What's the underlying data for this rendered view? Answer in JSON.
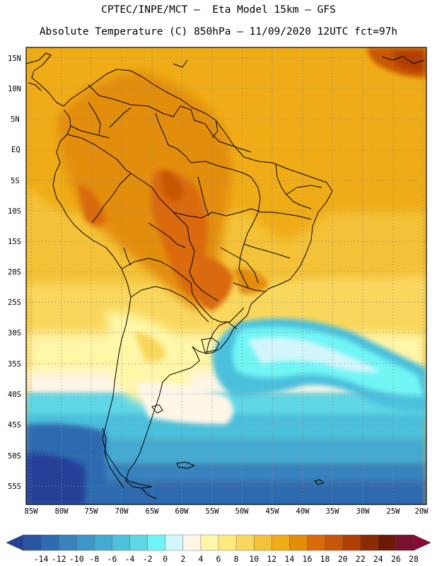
{
  "header": {
    "line1": "CPTEC/INPE/MCT —  Eta Model 15km — GFS",
    "line2": "Absolute Temperature (C) 850hPa — 11/09/2020 12UTC fct=97h"
  },
  "map": {
    "lat_labels": [
      "15N",
      "10N",
      "5N",
      "EQ",
      "5S",
      "10S",
      "15S",
      "20S",
      "25S",
      "30S",
      "35S",
      "40S",
      "45S",
      "50S",
      "55S"
    ],
    "lon_labels": [
      "85W",
      "80W",
      "75W",
      "70W",
      "65W",
      "60W",
      "55W",
      "50W",
      "45W",
      "40W",
      "35W",
      "30W",
      "25W",
      "20W"
    ]
  },
  "colorbar": {
    "labels": [
      "-14",
      "-12",
      "-10",
      "-8",
      "-6",
      "-4",
      "-2",
      "0",
      "2",
      "4",
      "6",
      "8",
      "10",
      "12",
      "14",
      "16",
      "18",
      "20",
      "22",
      "24",
      "26",
      "28"
    ],
    "colors": [
      "#25409a",
      "#2a55a3",
      "#2f6bb0",
      "#3982be",
      "#3f96c8",
      "#44aad2",
      "#4cc0dc",
      "#60d6e6",
      "#6ff5f5",
      "#d2f6fb",
      "#fff6e8",
      "#fff6a7",
      "#fce97f",
      "#f9d75d",
      "#f4c238",
      "#f0ac17",
      "#e38d0c",
      "#da6b08",
      "#c95606",
      "#b13e04",
      "#8c2a02",
      "#6d1a05",
      "#7a1030",
      "#8a0a35"
    ]
  }
}
